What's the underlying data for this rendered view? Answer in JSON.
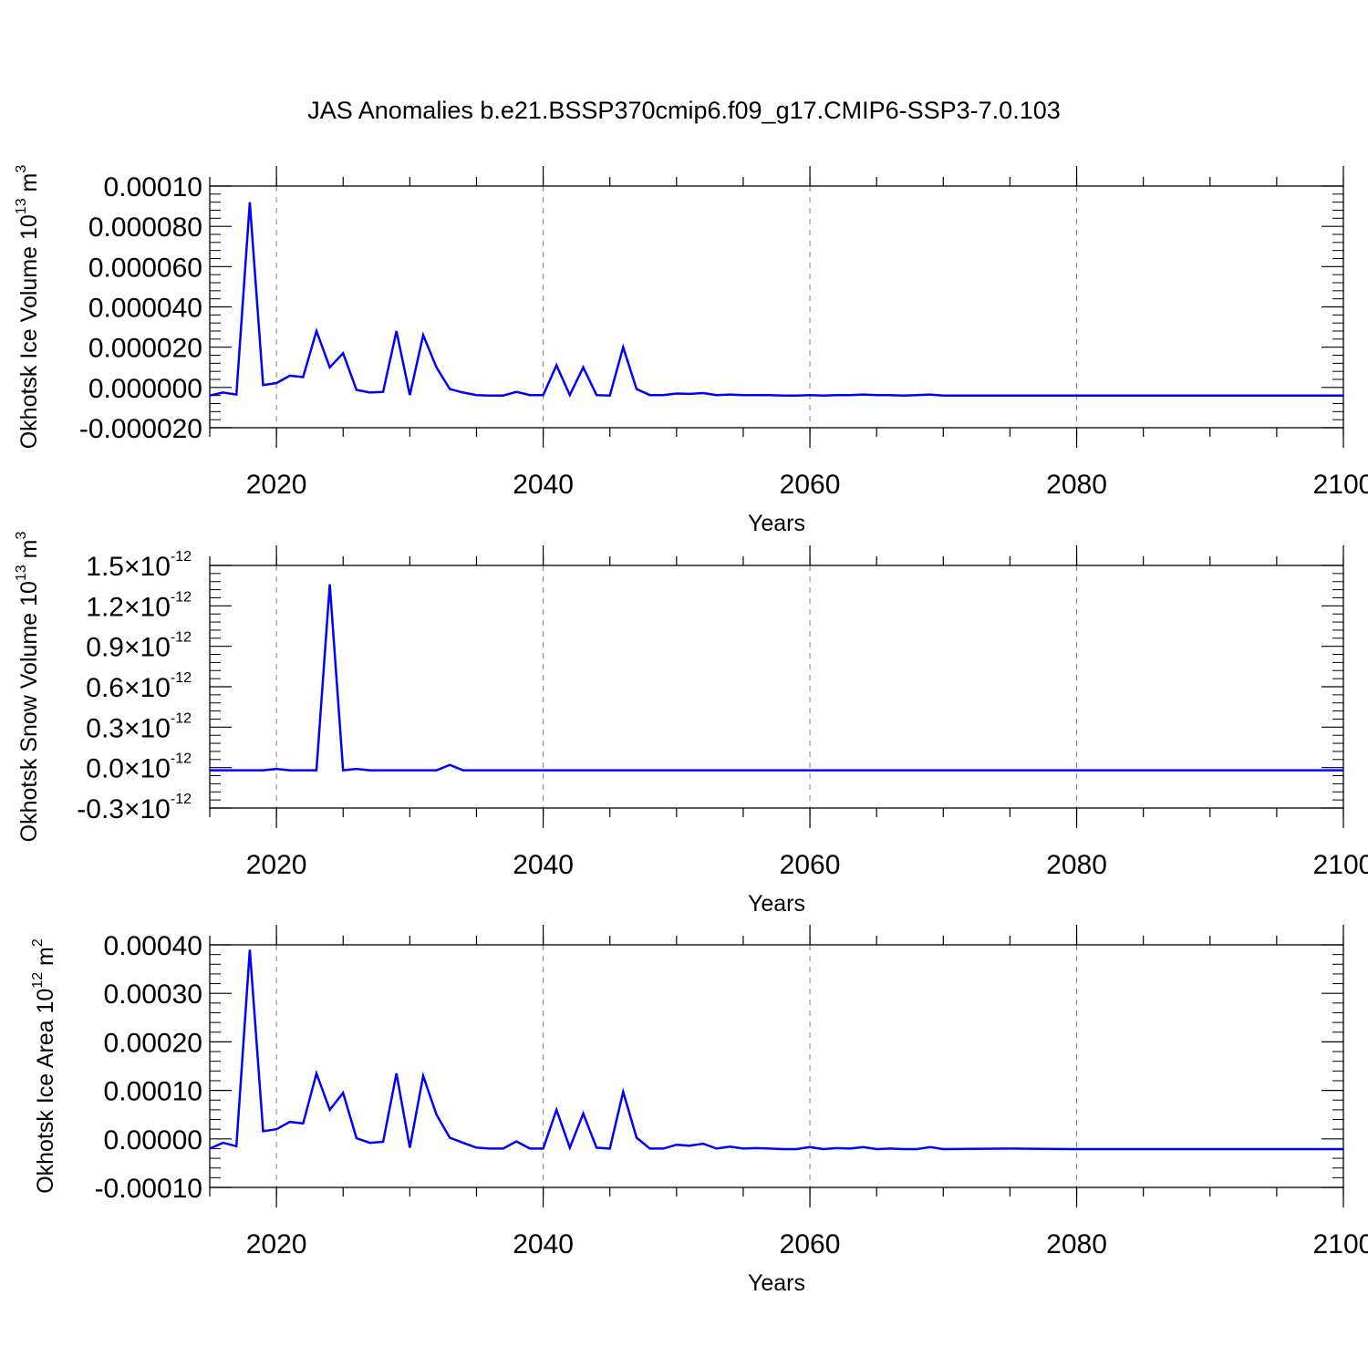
{
  "title": "JAS Anomalies b.e21.BSSP370cmip6.f09_g17.CMIP6-SSP3-7.0.103",
  "colors": {
    "line": "#0000ff",
    "axis": "#000000",
    "grid": "#808080"
  },
  "chart_data": [
    {
      "type": "line",
      "ylabel": {
        "text": "Okhotsk Ice Volume 10",
        "exp": "13",
        "unit": " m",
        "unit_exp": "3"
      },
      "xlabel": "Years",
      "xlim": [
        2015,
        2100
      ],
      "ylim": [
        -2e-05,
        0.0001
      ],
      "grid": "vertical dashed at major x ticks",
      "xticks": [
        {
          "value": 2020,
          "label": "2020"
        },
        {
          "value": 2040,
          "label": "2040"
        },
        {
          "value": 2060,
          "label": "2060"
        },
        {
          "value": 2080,
          "label": "2080"
        },
        {
          "value": 2100,
          "label": "2100"
        }
      ],
      "yticks": [
        {
          "value": 0.0001,
          "label": "0.00010"
        },
        {
          "value": 8e-05,
          "label": "0.000080"
        },
        {
          "value": 6e-05,
          "label": "0.000060"
        },
        {
          "value": 4e-05,
          "label": "0.000040"
        },
        {
          "value": 2e-05,
          "label": "0.000020"
        },
        {
          "value": 0.0,
          "label": "0.000000"
        },
        {
          "value": -2e-05,
          "label": "-0.000020"
        }
      ],
      "x": [
        2015,
        2016,
        2017,
        2018,
        2019,
        2020,
        2021,
        2022,
        2023,
        2024,
        2025,
        2026,
        2027,
        2028,
        2029,
        2030,
        2031,
        2032,
        2033,
        2034,
        2035,
        2036,
        2037,
        2038,
        2039,
        2040,
        2041,
        2042,
        2043,
        2044,
        2045,
        2046,
        2047,
        2048,
        2049,
        2050,
        2051,
        2052,
        2053,
        2054,
        2055,
        2056,
        2057,
        2058,
        2059,
        2060,
        2061,
        2062,
        2063,
        2064,
        2065,
        2066,
        2067,
        2068,
        2069,
        2070,
        2075,
        2080,
        2085,
        2090,
        2095,
        2100
      ],
      "y": [
        -4e-06,
        -2.5e-06,
        -3.5e-06,
        9.2e-05,
        1.2e-06,
        2.2e-06,
        5.8e-06,
        5.2e-06,
        2.8e-05,
        1e-05,
        1.7e-05,
        -1.2e-06,
        -2.5e-06,
        -2.2e-06,
        2.8e-05,
        -3.8e-06,
        2.6e-05,
        1e-05,
        -8e-07,
        -2.5e-06,
        -3.8e-06,
        -4e-06,
        -4e-06,
        -2.2e-06,
        -3.8e-06,
        -3.8e-06,
        1.1e-05,
        -3.8e-06,
        1e-05,
        -3.8e-06,
        -4e-06,
        2e-05,
        -8e-07,
        -3.8e-06,
        -3.8e-06,
        -3e-06,
        -3.2e-06,
        -2.8e-06,
        -3.8e-06,
        -3.5e-06,
        -3.8e-06,
        -3.8e-06,
        -3.8e-06,
        -4e-06,
        -4e-06,
        -3.8e-06,
        -4e-06,
        -3.8e-06,
        -3.8e-06,
        -3.5e-06,
        -3.8e-06,
        -3.8e-06,
        -4e-06,
        -3.8e-06,
        -3.5e-06,
        -4e-06,
        -4e-06,
        -4e-06,
        -4e-06,
        -4e-06,
        -4e-06,
        -4e-06
      ]
    },
    {
      "type": "line",
      "ylabel": {
        "text": "Okhotsk Snow Volume 10",
        "exp": "13",
        "unit": " m",
        "unit_exp": "3"
      },
      "xlabel": "Years",
      "xlim": [
        2015,
        2100
      ],
      "ylim": [
        -3e-13,
        1.5e-12
      ],
      "grid": "vertical dashed at major x ticks",
      "xticks": [
        {
          "value": 2020,
          "label": "2020"
        },
        {
          "value": 2040,
          "label": "2040"
        },
        {
          "value": 2060,
          "label": "2060"
        },
        {
          "value": 2080,
          "label": "2080"
        },
        {
          "value": 2100,
          "label": "2100"
        }
      ],
      "yticks": [
        {
          "value": 1.5e-12,
          "mant": "1.5",
          "sep": "×10",
          "exp": "-12"
        },
        {
          "value": 1.2e-12,
          "mant": "1.2",
          "sep": "×10",
          "exp": "-12"
        },
        {
          "value": 9e-13,
          "mant": "0.9",
          "sep": "×10",
          "exp": "-12"
        },
        {
          "value": 6e-13,
          "mant": "0.6",
          "sep": "×10",
          "exp": "-12"
        },
        {
          "value": 3e-13,
          "mant": "0.3",
          "sep": "×10",
          "exp": "-12"
        },
        {
          "value": 0.0,
          "mant": "0.0",
          "sep": "×10",
          "exp": "-12"
        },
        {
          "value": -3e-13,
          "mant": "-0.3",
          "sep": "×10",
          "exp": "-12"
        }
      ],
      "x": [
        2015,
        2016,
        2017,
        2018,
        2019,
        2020,
        2021,
        2022,
        2023,
        2024,
        2025,
        2026,
        2027,
        2028,
        2029,
        2030,
        2031,
        2032,
        2033,
        2034,
        2035,
        2040,
        2045,
        2050,
        2060,
        2070,
        2080,
        2090,
        2100
      ],
      "y": [
        -2e-14,
        -2e-14,
        -2e-14,
        -2e-14,
        -2e-14,
        -1e-14,
        -2e-14,
        -2e-14,
        -2e-14,
        1.36e-12,
        -2e-14,
        -1e-14,
        -2e-14,
        -2e-14,
        -2e-14,
        -2e-14,
        -2e-14,
        -2e-14,
        2e-14,
        -2e-14,
        -2e-14,
        -2e-14,
        -2e-14,
        -2e-14,
        -2e-14,
        -2e-14,
        -2e-14,
        -2e-14,
        -2e-14
      ]
    },
    {
      "type": "line",
      "ylabel": {
        "text": "Okhotsk Ice Area 10",
        "exp": "12",
        "unit": " m",
        "unit_exp": "2"
      },
      "xlabel": "Years",
      "xlim": [
        2015,
        2100
      ],
      "ylim": [
        -0.0001,
        0.0004
      ],
      "grid": "vertical dashed at major x ticks",
      "xticks": [
        {
          "value": 2020,
          "label": "2020"
        },
        {
          "value": 2040,
          "label": "2040"
        },
        {
          "value": 2060,
          "label": "2060"
        },
        {
          "value": 2080,
          "label": "2080"
        },
        {
          "value": 2100,
          "label": "2100"
        }
      ],
      "yticks": [
        {
          "value": 0.0004,
          "label": "0.00040"
        },
        {
          "value": 0.0003,
          "label": "0.00030"
        },
        {
          "value": 0.0002,
          "label": "0.00020"
        },
        {
          "value": 0.0001,
          "label": "0.00010"
        },
        {
          "value": 0.0,
          "label": "0.00000"
        },
        {
          "value": -0.0001,
          "label": "-0.00010"
        }
      ],
      "x": [
        2015,
        2016,
        2017,
        2018,
        2019,
        2020,
        2021,
        2022,
        2023,
        2024,
        2025,
        2026,
        2027,
        2028,
        2029,
        2030,
        2031,
        2032,
        2033,
        2034,
        2035,
        2036,
        2037,
        2038,
        2039,
        2040,
        2041,
        2042,
        2043,
        2044,
        2045,
        2046,
        2047,
        2048,
        2049,
        2050,
        2051,
        2052,
        2053,
        2054,
        2055,
        2056,
        2057,
        2058,
        2059,
        2060,
        2061,
        2062,
        2063,
        2064,
        2065,
        2066,
        2067,
        2068,
        2069,
        2070,
        2075,
        2080,
        2085,
        2090,
        2095,
        2100
      ],
      "y": [
        -2e-05,
        -8e-06,
        -1.5e-05,
        0.00039,
        1.6e-05,
        2e-05,
        3.5e-05,
        3.2e-05,
        0.000135,
        6e-05,
        9.5e-05,
        1.5e-06,
        -8e-06,
        -6e-06,
        0.000135,
        -1.8e-05,
        0.00013,
        5e-05,
        2.5e-06,
        -8e-06,
        -1.8e-05,
        -2e-05,
        -2e-05,
        -5e-06,
        -2e-05,
        -2e-05,
        6e-05,
        -1.8e-05,
        5.2e-05,
        -1.8e-05,
        -2e-05,
        9.7e-05,
        2.5e-06,
        -2e-05,
        -2e-05,
        -1.2e-05,
        -1.4e-05,
        -1e-05,
        -2e-05,
        -1.6e-05,
        -2e-05,
        -1.9e-05,
        -2e-05,
        -2.1e-05,
        -2.1e-05,
        -1.7e-05,
        -2.1e-05,
        -1.9e-05,
        -2e-05,
        -1.7e-05,
        -2.1e-05,
        -2e-05,
        -2.1e-05,
        -2.1e-05,
        -1.7e-05,
        -2.1e-05,
        -2e-05,
        -2.1e-05,
        -2.1e-05,
        -2.1e-05,
        -2.1e-05,
        -2.1e-05
      ]
    }
  ]
}
